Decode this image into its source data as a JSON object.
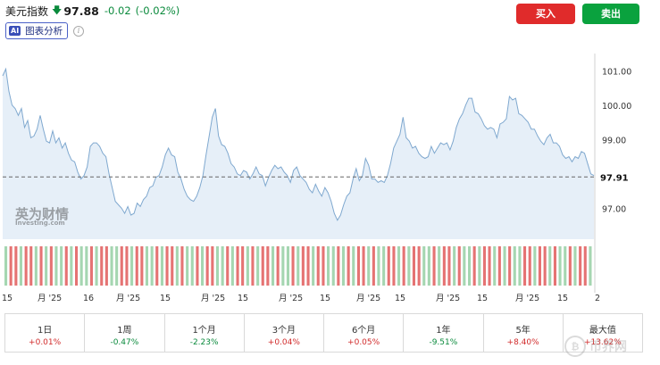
{
  "header": {
    "name": "美元指数",
    "arrow": "🡇",
    "price": "97.88",
    "change": "-0.02",
    "change_pct": "(-0.02%)"
  },
  "toolbar": {
    "ai_badge": "AI",
    "ai_label": "图表分析",
    "info_icon": "i",
    "buy_label": "买入",
    "sell_label": "卖出",
    "buy_color": "#e02b2b",
    "sell_color": "#0aa23e"
  },
  "watermark": {
    "logo": "英为财情",
    "sub": "Investing.com",
    "corner": "币界网"
  },
  "chart_data": {
    "type": "area",
    "y_ticks": [
      "101.00",
      "100.00",
      "99.00",
      "97.00"
    ],
    "ylim": [
      96.1,
      101.5
    ],
    "current_value": 97.91,
    "current_label": "97.91",
    "line_color": "#7fa8cf",
    "fill_color": "#e6eff8",
    "x_tick_labels": [
      "15",
      "月 '25",
      "16",
      "月 '25",
      "15",
      "月 '25",
      "15",
      "月 '25",
      "15",
      "月 '25",
      "15",
      "月 '25",
      "15",
      "月 '25",
      "15",
      "月 '25",
      "15",
      "2"
    ],
    "series": [
      {
        "values": [
          100.85,
          101.05,
          100.4,
          100.0,
          99.9,
          99.7,
          99.9,
          99.35,
          99.55,
          99.05,
          99.1,
          99.3,
          99.7,
          99.3,
          98.95,
          98.9,
          99.25,
          98.9,
          99.05,
          98.75,
          98.9,
          98.6,
          98.4,
          98.35,
          98.05,
          97.85,
          97.95,
          98.2,
          98.8,
          98.9,
          98.9,
          98.8,
          98.6,
          98.5,
          98.0,
          97.6,
          97.2,
          97.1,
          97.0,
          96.85,
          97.05,
          96.8,
          96.85,
          97.15,
          97.05,
          97.25,
          97.35,
          97.6,
          97.65,
          97.9,
          97.95,
          98.2,
          98.55,
          98.75,
          98.55,
          98.5,
          98.05,
          97.85,
          97.55,
          97.35,
          97.25,
          97.2,
          97.35,
          97.6,
          97.95,
          98.55,
          99.1,
          99.65,
          99.9,
          99.1,
          98.85,
          98.8,
          98.6,
          98.3,
          98.2,
          98.0,
          97.95,
          98.1,
          98.05,
          97.85,
          98.0,
          98.2,
          98.0,
          97.95,
          97.65,
          97.9,
          98.1,
          98.25,
          98.15,
          98.2,
          98.05,
          97.95,
          97.75,
          98.1,
          98.2,
          97.95,
          97.85,
          97.75,
          97.55,
          97.45,
          97.7,
          97.5,
          97.35,
          97.6,
          97.45,
          97.2,
          96.85,
          96.65,
          96.8,
          97.1,
          97.35,
          97.45,
          97.85,
          98.15,
          97.8,
          97.95,
          98.45,
          98.25,
          97.85,
          97.85,
          97.75,
          97.8,
          97.75,
          97.95,
          98.3,
          98.75,
          98.95,
          99.15,
          99.65,
          99.05,
          98.95,
          98.75,
          98.8,
          98.6,
          98.5,
          98.45,
          98.5,
          98.8,
          98.6,
          98.75,
          98.9,
          98.85,
          98.9,
          98.7,
          98.95,
          99.35,
          99.6,
          99.75,
          100.0,
          100.2,
          100.2,
          99.8,
          99.75,
          99.6,
          99.4,
          99.3,
          99.35,
          99.3,
          99.05,
          99.45,
          99.5,
          99.6,
          100.25,
          100.15,
          100.2,
          99.75,
          99.7,
          99.6,
          99.5,
          99.3,
          99.3,
          99.1,
          98.95,
          98.85,
          99.05,
          99.15,
          98.9,
          98.9,
          98.8,
          98.55,
          98.45,
          98.5,
          98.35,
          98.5,
          98.45,
          98.65,
          98.6,
          98.3,
          98.0,
          97.95
        ]
      }
    ],
    "volume_bars": "GRRGRRGRGRGGRGRGGRGRRGGRRGRRGGRGRRGRGGRGRRGGRGRRGRGRRGRGGRGRRGRRGGRGRGRRGRGGRRGRGRRGGRGRRGRGGRGRRGRGRGGRRGRRGRGGRGRRG"
  },
  "periods": [
    {
      "label": "1日",
      "value": "+0.01%",
      "dir": "pos"
    },
    {
      "label": "1周",
      "value": "-0.47%",
      "dir": "neg"
    },
    {
      "label": "1个月",
      "value": "-2.23%",
      "dir": "neg"
    },
    {
      "label": "3个月",
      "value": "+0.04%",
      "dir": "pos"
    },
    {
      "label": "6个月",
      "value": "+0.05%",
      "dir": "pos"
    },
    {
      "label": "1年",
      "value": "-9.51%",
      "dir": "neg"
    },
    {
      "label": "5年",
      "value": "+8.40%",
      "dir": "pos"
    },
    {
      "label": "最大值",
      "value": "+13.62%",
      "dir": "pos"
    }
  ]
}
